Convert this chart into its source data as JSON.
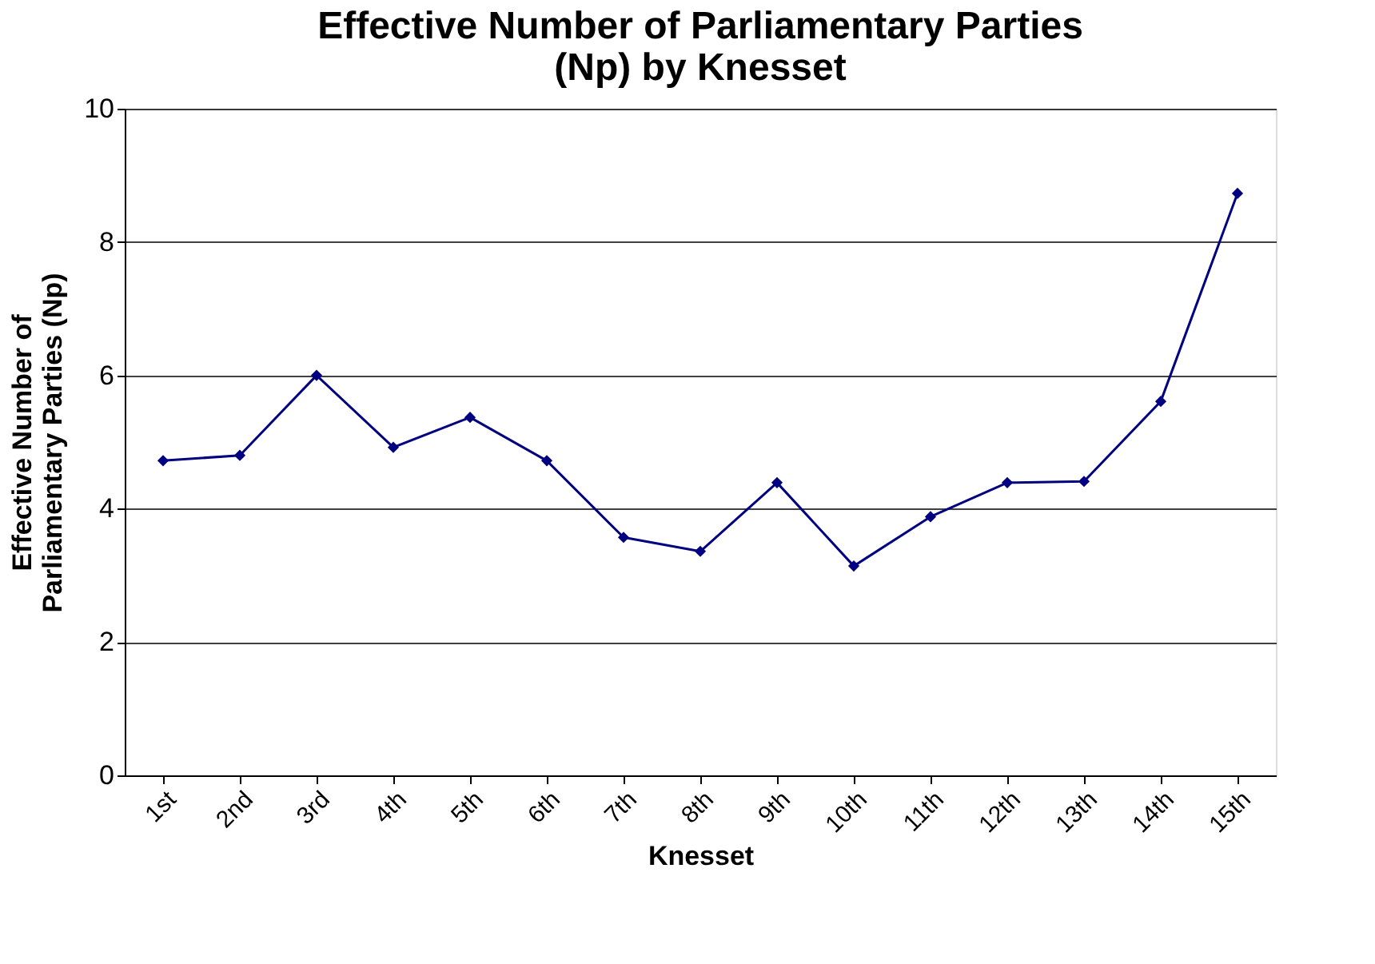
{
  "chart_data": {
    "type": "line",
    "title": "Effective Number of Parliamentary Parties (Np) by Knesset",
    "xlabel": "Knesset",
    "ylabel": "Effective Number of Parliamentary Parties (Np)",
    "categories": [
      "1st",
      "2nd",
      "3rd",
      "4th",
      "5th",
      "6th",
      "7th",
      "8th",
      "9th",
      "10th",
      "11th",
      "12th",
      "13th",
      "14th",
      "15th"
    ],
    "series": [
      {
        "color": "#000080",
        "values": [
          4.72,
          4.8,
          6.0,
          4.92,
          5.37,
          4.72,
          3.57,
          3.36,
          4.39,
          3.14,
          3.88,
          4.39,
          4.41,
          5.61,
          8.73
        ]
      }
    ],
    "ylim": [
      0,
      10
    ],
    "yticks": [
      0,
      2,
      4,
      6,
      8,
      10
    ],
    "grid": "y",
    "marker": "diamond",
    "line_style": "solid"
  }
}
